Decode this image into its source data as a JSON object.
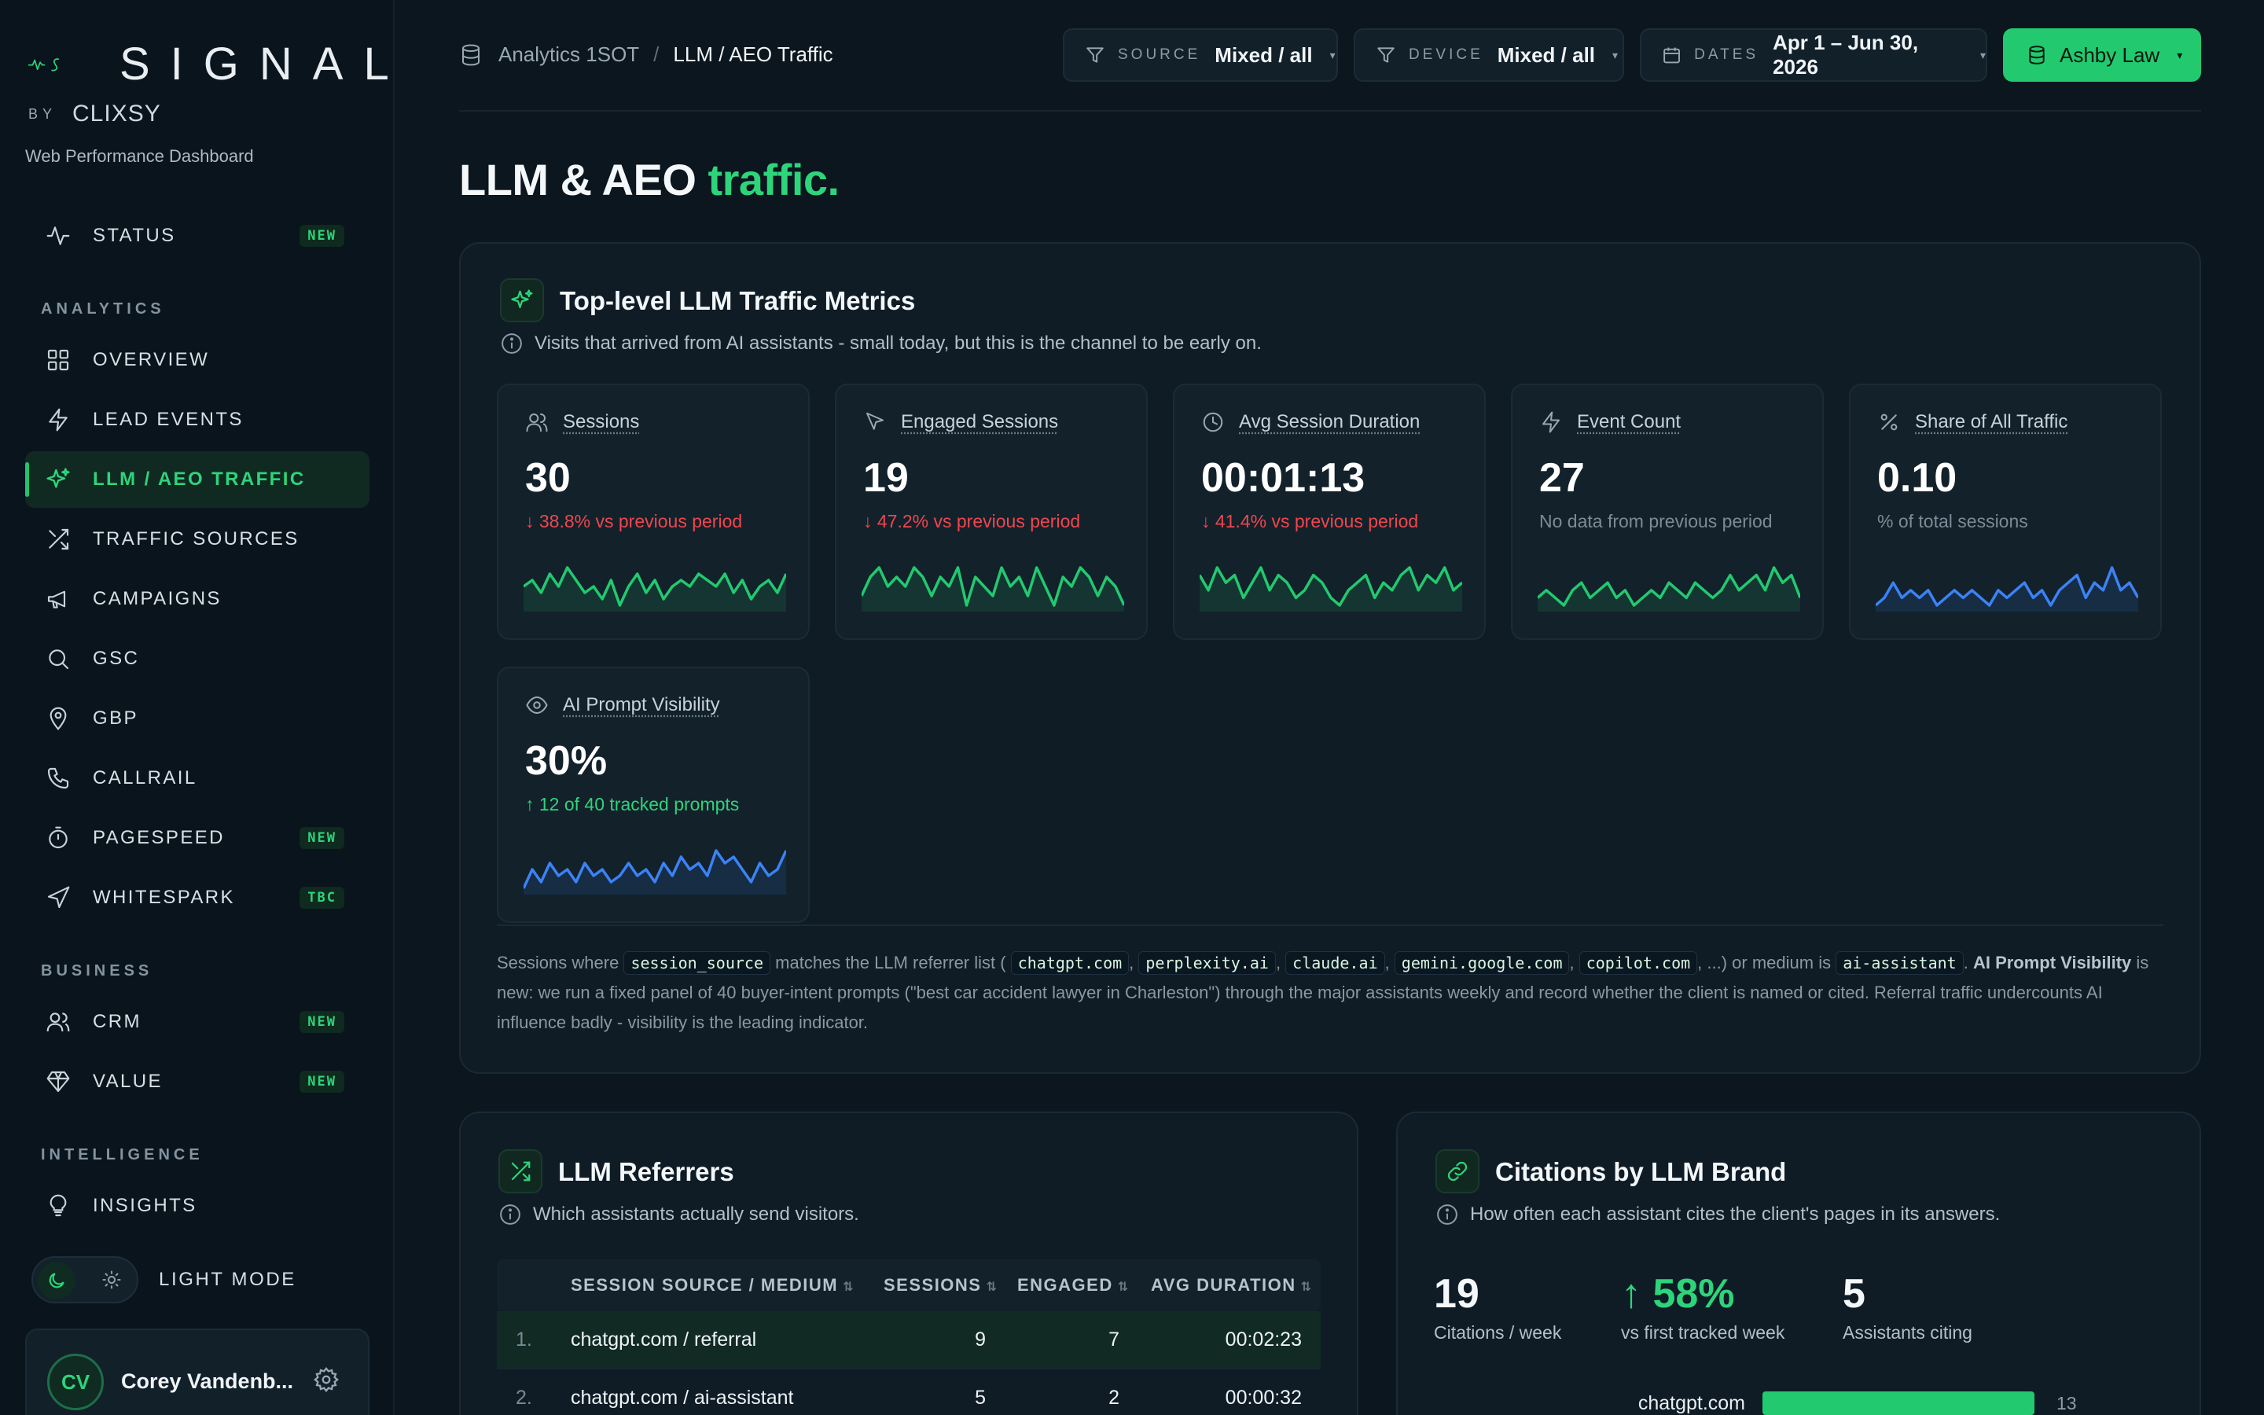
{
  "brand": {
    "logo_text": "SIGNAL",
    "by": "BY",
    "maker": "CLIXSY",
    "subtitle": "Web Performance Dashboard"
  },
  "sidebar": {
    "top_item": {
      "label": "STATUS",
      "badge": "NEW"
    },
    "sections": [
      {
        "title": "ANALYTICS",
        "items": [
          {
            "label": "OVERVIEW",
            "badge": ""
          },
          {
            "label": "LEAD EVENTS",
            "badge": ""
          },
          {
            "label": "LLM / AEO TRAFFIC",
            "badge": "",
            "active": true
          },
          {
            "label": "TRAFFIC SOURCES",
            "badge": ""
          },
          {
            "label": "CAMPAIGNS",
            "badge": ""
          },
          {
            "label": "GSC",
            "badge": ""
          },
          {
            "label": "GBP",
            "badge": ""
          },
          {
            "label": "CALLRAIL",
            "badge": ""
          },
          {
            "label": "PAGESPEED",
            "badge": "NEW"
          },
          {
            "label": "WHITESPARK",
            "badge": "TBC"
          }
        ]
      },
      {
        "title": "BUSINESS",
        "items": [
          {
            "label": "CRM",
            "badge": "NEW"
          },
          {
            "label": "VALUE",
            "badge": "NEW"
          }
        ]
      },
      {
        "title": "INTELLIGENCE",
        "items": [
          {
            "label": "INSIGHTS",
            "badge": ""
          }
        ]
      }
    ],
    "mode_label": "LIGHT MODE",
    "user": {
      "initials": "CV",
      "name": "Corey Vandenb..."
    }
  },
  "header": {
    "breadcrumb": [
      "Analytics 1SOT",
      "LLM / AEO Traffic"
    ],
    "filters": [
      {
        "key": "SOURCE",
        "value": "Mixed / all"
      },
      {
        "key": "DEVICE",
        "value": "Mixed / all"
      },
      {
        "key": "DATES",
        "value": "Apr 1 – Jun 30, 2026"
      }
    ],
    "client": "Ashby Law"
  },
  "page": {
    "title_main": "LLM & AEO",
    "title_accent": "traffic."
  },
  "metrics_panel": {
    "title": "Top-level LLM Traffic Metrics",
    "subtitle": "Visits that arrived from AI assistants - small today, but this is the channel to be early on.",
    "cards": [
      {
        "label": "Sessions",
        "icon": "users-icon",
        "value": "30",
        "delta": "↓ 38.8% vs previous period",
        "trend": "down",
        "color": "#22c96f",
        "spark": [
          4,
          5,
          3,
          6,
          4,
          7,
          5,
          3,
          4,
          2,
          5,
          1,
          4,
          6,
          3,
          5,
          2,
          4,
          5,
          4,
          6,
          5,
          4,
          6,
          3,
          5,
          2,
          4,
          5,
          3,
          6
        ]
      },
      {
        "label": "Engaged Sessions",
        "icon": "cursor-icon",
        "value": "19",
        "delta": "↓ 47.2% vs previous period",
        "trend": "down",
        "color": "#22c96f",
        "spark": [
          3,
          5,
          6,
          4,
          5,
          4,
          6,
          5,
          3,
          5,
          4,
          6,
          2,
          5,
          4,
          3,
          6,
          4,
          5,
          3,
          6,
          4,
          2,
          5,
          4,
          6,
          5,
          3,
          5,
          4,
          2
        ]
      },
      {
        "label": "Avg Session Duration",
        "icon": "clock-icon",
        "value": "00:01:13",
        "delta": "↓ 41.4% vs previous period",
        "trend": "down",
        "color": "#22c96f",
        "spark": [
          5,
          3,
          6,
          4,
          5,
          2,
          4,
          6,
          3,
          5,
          4,
          2,
          3,
          5,
          4,
          2,
          1,
          3,
          4,
          5,
          2,
          4,
          3,
          5,
          6,
          3,
          5,
          4,
          6,
          3,
          4
        ]
      },
      {
        "label": "Event Count",
        "icon": "bolt-icon",
        "value": "27",
        "delta": "No data from previous period",
        "trend": "none",
        "color": "#22c96f",
        "spark": [
          3,
          4,
          3,
          2,
          4,
          5,
          3,
          4,
          5,
          3,
          4,
          2,
          3,
          4,
          3,
          5,
          4,
          3,
          5,
          4,
          3,
          4,
          6,
          4,
          5,
          6,
          4,
          7,
          5,
          6,
          3
        ]
      },
      {
        "label": "Share of All Traffic",
        "icon": "percent-icon",
        "value": "0.10",
        "delta": "% of total sessions",
        "trend": "none",
        "color": "#3b82f6",
        "spark": [
          2,
          3,
          5,
          3,
          4,
          3,
          4,
          2,
          3,
          4,
          3,
          4,
          3,
          2,
          4,
          3,
          4,
          5,
          3,
          4,
          2,
          4,
          5,
          6,
          3,
          5,
          4,
          7,
          4,
          5,
          3
        ]
      },
      {
        "label": "AI Prompt Visibility",
        "icon": "eye-icon",
        "value": "30%",
        "delta": "↑ 12 of 40 tracked prompts",
        "trend": "up",
        "color": "#3b82f6",
        "spark": [
          2,
          5,
          3,
          6,
          4,
          5,
          3,
          6,
          4,
          5,
          3,
          4,
          6,
          4,
          5,
          3,
          6,
          4,
          7,
          5,
          6,
          4,
          8,
          6,
          7,
          5,
          3,
          6,
          4,
          5,
          8
        ]
      }
    ],
    "footnote": {
      "t1": "Sessions where",
      "c1": "session_source",
      "t2": "matches the LLM referrer list (",
      "c2": "chatgpt.com",
      "c3": "perplexity.ai",
      "c4": "claude.ai",
      "c5": "gemini.google.com",
      "c6": "copilot.com",
      "t3": ", ...) or medium is",
      "c7": "ai-assistant",
      "t4": ". ",
      "b1": "AI Prompt Visibility",
      "t5": " is new: we run a fixed panel of 40 buyer-intent prompts (\"best car accident lawyer in Charleston\") through the major assistants weekly and record whether the client is named or cited. Referral traffic undercounts AI influence badly - visibility is the leading indicator."
    }
  },
  "referrers_panel": {
    "title": "LLM Referrers",
    "subtitle": "Which assistants actually send visitors.",
    "columns": [
      "SESSION SOURCE / MEDIUM",
      "SESSIONS",
      "ENGAGED",
      "AVG DURATION"
    ],
    "rows": [
      {
        "idx": "1.",
        "source": "chatgpt.com / referral",
        "sessions": "9",
        "engaged": "7",
        "duration": "00:02:23"
      },
      {
        "idx": "2.",
        "source": "chatgpt.com / ai-assistant",
        "sessions": "5",
        "engaged": "2",
        "duration": "00:00:32"
      }
    ]
  },
  "citations_panel": {
    "title": "Citations by LLM Brand",
    "subtitle": "How often each assistant cites the client's pages in its answers.",
    "stats": [
      {
        "value": "19",
        "label": "Citations / week"
      },
      {
        "value": "↑ 58%",
        "label": "vs first tracked week"
      },
      {
        "value": "5",
        "label": "Assistants citing"
      }
    ],
    "bars": [
      {
        "label": "chatgpt.com",
        "value": 13
      }
    ]
  }
}
